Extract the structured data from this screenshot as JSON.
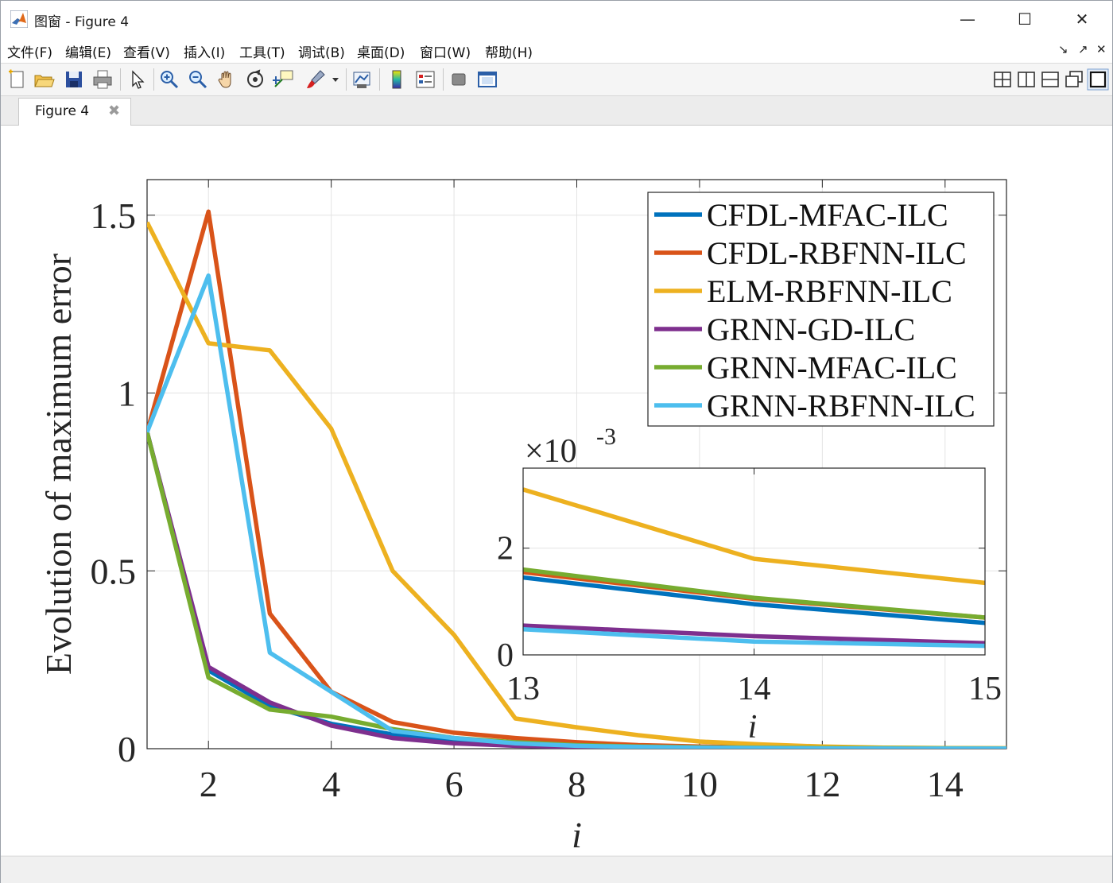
{
  "window": {
    "title": "图窗 - Figure 4",
    "minimize": "—",
    "maximize": "☐",
    "close": "✕"
  },
  "menu": {
    "items": [
      "文件(F)",
      "编辑(E)",
      "查看(V)",
      "插入(I)",
      "工具(T)",
      "调试(B)",
      "桌面(D)",
      "窗口(W)",
      "帮助(H)"
    ],
    "dock_controls": [
      "↘",
      "↗",
      "✕"
    ]
  },
  "toolbar": {
    "icons": [
      "new-figure-icon",
      "open-file-icon",
      "save-icon",
      "print-icon",
      "pointer-icon",
      "zoom-in-icon",
      "zoom-out-icon",
      "pan-hand-icon",
      "rotate-3d-icon",
      "data-tips-icon",
      "brush-icon",
      "dropdown-arrow-icon",
      "link-plot-icon",
      "colorbar-icon",
      "legend-icon",
      "hide-plot-tools-icon",
      "show-plot-tools-icon"
    ],
    "layout_icons": [
      "tile-grid-icon",
      "tile-left-right-icon",
      "tile-top-bottom-icon",
      "float-icon",
      "maximize-tile-icon"
    ]
  },
  "tab": {
    "label": "Figure 4",
    "close": "✖"
  },
  "chart_data": [
    {
      "type": "line",
      "title": "",
      "xlabel": "i",
      "ylabel": "Evolution of maximum error",
      "xlim": [
        1,
        15
      ],
      "ylim": [
        0,
        1.6
      ],
      "xticks": [
        2,
        4,
        6,
        8,
        10,
        12,
        14
      ],
      "xtick_labels": [
        "2",
        "4",
        "6",
        "8",
        "10",
        "12",
        "14"
      ],
      "yticks": [
        0,
        0.5,
        1,
        1.5
      ],
      "ytick_labels": [
        "0",
        "0.5",
        "1",
        "1.5"
      ],
      "grid": true,
      "legend_position": "top-right",
      "x": [
        1,
        2,
        3,
        4,
        5,
        6,
        7,
        8,
        9,
        10,
        11,
        12,
        13,
        14,
        15
      ],
      "series": [
        {
          "name": "CFDL-MFAC-ILC",
          "color": "#0072BD",
          "values": [
            0.89,
            0.22,
            0.12,
            0.07,
            0.04,
            0.02,
            0.012,
            0.008,
            0.005,
            0.003,
            0.002,
            0.0015,
            0.0015,
            0.001,
            0.0006
          ]
        },
        {
          "name": "CFDL-RBFNN-ILC",
          "color": "#D95319",
          "values": [
            0.89,
            1.51,
            0.38,
            0.16,
            0.075,
            0.045,
            0.03,
            0.018,
            0.01,
            0.006,
            0.004,
            0.002,
            0.0015,
            0.0011,
            0.0007
          ]
        },
        {
          "name": "ELM-RBFNN-ILC",
          "color": "#EDB120",
          "values": [
            1.48,
            1.14,
            1.12,
            0.9,
            0.5,
            0.32,
            0.085,
            0.06,
            0.038,
            0.02,
            0.012,
            0.006,
            0.003,
            0.0018,
            0.0014
          ]
        },
        {
          "name": "GRNN-GD-ILC",
          "color": "#7E2F8E",
          "values": [
            0.89,
            0.23,
            0.13,
            0.065,
            0.03,
            0.015,
            0.008,
            0.005,
            0.003,
            0.002,
            0.0015,
            0.001,
            0.0005,
            0.0003,
            0.0002
          ]
        },
        {
          "name": "GRNN-MFAC-ILC",
          "color": "#77AC30",
          "values": [
            0.89,
            0.2,
            0.11,
            0.09,
            0.055,
            0.03,
            0.018,
            0.01,
            0.006,
            0.004,
            0.003,
            0.002,
            0.0016,
            0.0011,
            0.0007
          ]
        },
        {
          "name": "GRNN-RBFNN-ILC",
          "color": "#4DBEEE",
          "values": [
            0.89,
            1.33,
            0.27,
            0.16,
            0.05,
            0.03,
            0.015,
            0.008,
            0.005,
            0.003,
            0.002,
            0.001,
            0.0005,
            0.00025,
            0.00018
          ]
        }
      ]
    },
    {
      "type": "line",
      "title": "",
      "xlabel": "i",
      "ylabel": "",
      "exponent_label": "×10",
      "exponent_power": "-3",
      "xlim": [
        13,
        15
      ],
      "ylim": [
        0,
        3.5
      ],
      "xticks": [
        13,
        14,
        15
      ],
      "xtick_labels": [
        "13",
        "14",
        "15"
      ],
      "yticks": [
        0,
        2
      ],
      "ytick_labels": [
        "0",
        "2"
      ],
      "grid": true,
      "x": [
        13,
        14,
        15
      ],
      "series": [
        {
          "name": "CFDL-MFAC-ILC",
          "color": "#0072BD",
          "values": [
            1.45,
            0.95,
            0.6
          ]
        },
        {
          "name": "CFDL-RBFNN-ILC",
          "color": "#D95319",
          "values": [
            1.55,
            1.05,
            0.7
          ]
        },
        {
          "name": "ELM-RBFNN-ILC",
          "color": "#EDB120",
          "values": [
            3.1,
            1.8,
            1.35
          ]
        },
        {
          "name": "GRNN-GD-ILC",
          "color": "#7E2F8E",
          "values": [
            0.55,
            0.35,
            0.22
          ]
        },
        {
          "name": "GRNN-MFAC-ILC",
          "color": "#77AC30",
          "values": [
            1.6,
            1.07,
            0.7
          ]
        },
        {
          "name": "GRNN-RBFNN-ILC",
          "color": "#4DBEEE",
          "values": [
            0.48,
            0.25,
            0.17
          ]
        }
      ]
    }
  ]
}
